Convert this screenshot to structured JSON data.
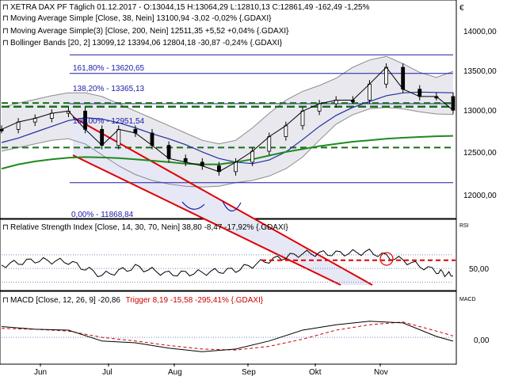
{
  "currency_symbol": "€",
  "panels": {
    "price": {
      "legend": [
        {
          "text": "XETRA DAX PF Täglich 01.12.2017 - O:13044,15 H:13064,29 L:12810,13 C:12861,49 -162,49 -1,25%",
          "color": "#000000"
        },
        {
          "text": "Moving Average Simple [Close, 38, Nein] 13100,94 -3,02 -0,02% {.GDAXI}",
          "color": "#000000"
        },
        {
          "text": "Moving Average Simple(3) [Close, 200, Nein] 12511,35 +5,52 +0,04% {.GDAXI}",
          "color": "#000000"
        },
        {
          "text": "Bollinger Bands [20, 2] 13099,12 13394,06 12804,18 -30,87 -0,24% {.GDAXI}",
          "color": "#000000"
        }
      ],
      "y_ticks": [
        "14000,00",
        "13500,00",
        "13000,00",
        "12500,00",
        "12000,00"
      ],
      "fib_labels": [
        "161,80% - 13620,65",
        "138,20% - 13365,13",
        "100,00% - 12951,54",
        "0,00% - 11868,84"
      ]
    },
    "rsi": {
      "legend": "Relative Strength Index [Close, 14, 30, 70, Nein] 38,80 -8,47 -17,92% {.GDAXI}",
      "tag": "RSI",
      "y_ticks": [
        "50,00"
      ]
    },
    "macd": {
      "legend_main": "MACD [Close, 12, 26, 9] -20,86",
      "legend_trigger": "Trigger 8,19 -15,58 -295,41% {.GDAXI}",
      "trigger_color": "#cc0000",
      "tag": "MACD",
      "y_ticks": [
        "0,00"
      ]
    }
  },
  "x_labels": [
    "Jun",
    "Jul",
    "Aug",
    "Sep",
    "Okt",
    "Nov"
  ],
  "colors": {
    "ma38": "#1f2f9f",
    "ma200": "#1f8a1f",
    "bollinger": "#8c8c8c",
    "bollinger_fill": "#e8e8ee",
    "channel": "#e00000",
    "support": "#1a6e1a",
    "fib": "#1a1aa6"
  },
  "chart_data": [
    {
      "type": "line",
      "name": "price",
      "x": [
        "2017-05-26",
        "2017-06-02",
        "2017-06-09",
        "2017-06-16",
        "2017-06-23",
        "2017-06-30",
        "2017-07-07",
        "2017-07-14",
        "2017-07-21",
        "2017-07-28",
        "2017-08-04",
        "2017-08-11",
        "2017-08-18",
        "2017-08-25",
        "2017-09-01",
        "2017-09-08",
        "2017-09-15",
        "2017-09-22",
        "2017-09-29",
        "2017-10-06",
        "2017-10-13",
        "2017-10-20",
        "2017-10-27",
        "2017-11-03",
        "2017-11-10",
        "2017-11-17",
        "2017-11-24",
        "2017-12-01"
      ],
      "series": [
        {
          "values": [
            12600,
            12700,
            12750,
            12820,
            12850,
            12600,
            12380,
            12600,
            12550,
            12380,
            12200,
            12150,
            12100,
            12020,
            12150,
            12300,
            12500,
            12650,
            12850,
            12950,
            13000,
            13000,
            13220,
            13450,
            13150,
            13050,
            13050,
            12861
          ]
        },
        {
          "values": [
            12420,
            12480,
            12560,
            12640,
            12720,
            12760,
            12740,
            12690,
            12620,
            12540,
            12470,
            12390,
            12290,
            12200,
            12150,
            12130,
            12180,
            12290,
            12460,
            12640,
            12790,
            12900,
            12980,
            13060,
            13100,
            13110,
            13105,
            13101
          ]
        },
        {
          "values": [
            12060,
            12120,
            12160,
            12190,
            12210,
            12220,
            12215,
            12205,
            12190,
            12170,
            12150,
            12130,
            12120,
            12120,
            12150,
            12190,
            12240,
            12290,
            12330,
            12370,
            12400,
            12430,
            12450,
            12470,
            12485,
            12495,
            12505,
            12511
          ]
        },
        {
          "values": [
            12900,
            12960,
            13010,
            13060,
            13100,
            13100,
            13050,
            12950,
            12850,
            12750,
            12650,
            12550,
            12450,
            12400,
            12450,
            12620,
            12820,
            13000,
            13120,
            13200,
            13300,
            13450,
            13550,
            13600,
            13500,
            13380,
            13310,
            13394
          ]
        },
        {
          "values": [
            12300,
            12350,
            12400,
            12450,
            12470,
            12400,
            12250,
            12100,
            11980,
            11900,
            11850,
            11820,
            11810,
            11820,
            11870,
            11900,
            11960,
            12060,
            12220,
            12450,
            12670,
            12800,
            12880,
            12900,
            12880,
            12840,
            12810,
            12804
          ]
        }
      ],
      "ylim": [
        11400,
        14350
      ]
    },
    {
      "type": "line",
      "name": "rsi",
      "x": [
        "2017-05-26",
        "2017-06-09",
        "2017-06-23",
        "2017-07-07",
        "2017-07-21",
        "2017-08-04",
        "2017-08-18",
        "2017-09-01",
        "2017-09-15",
        "2017-09-29",
        "2017-10-13",
        "2017-10-27",
        "2017-11-10",
        "2017-11-24",
        "2017-12-01"
      ],
      "values": [
        55,
        62,
        60,
        40,
        52,
        42,
        44,
        48,
        62,
        72,
        72,
        74,
        62,
        46,
        39
      ],
      "ylim": [
        20,
        100
      ]
    },
    {
      "type": "line",
      "name": "macd",
      "x": [
        "2017-05-26",
        "2017-06-09",
        "2017-06-23",
        "2017-07-07",
        "2017-07-21",
        "2017-08-04",
        "2017-08-18",
        "2017-09-01",
        "2017-09-15",
        "2017-09-29",
        "2017-10-13",
        "2017-10-27",
        "2017-11-10",
        "2017-11-24",
        "2017-12-01"
      ],
      "series": [
        {
          "values": [
            60,
            45,
            40,
            -20,
            -30,
            -60,
            -80,
            -65,
            -20,
            40,
            70,
            90,
            80,
            5,
            -21
          ]
        },
        {
          "values": [
            50,
            45,
            35,
            0,
            -20,
            -45,
            -65,
            -70,
            -50,
            -10,
            40,
            70,
            85,
            35,
            8
          ]
        }
      ],
      "ylim": [
        -140,
        150
      ]
    }
  ]
}
